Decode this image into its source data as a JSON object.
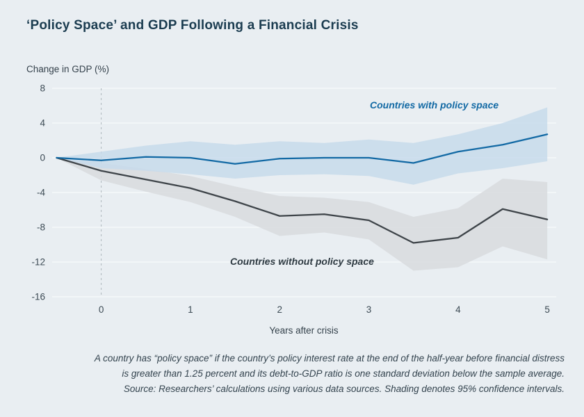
{
  "page": {
    "background": "#e9eef2"
  },
  "chart_data": {
    "type": "line",
    "title": "‘Policy Space’ and GDP Following a Financial Crisis",
    "y_axis_title": "Change in GDP (%)",
    "xlabel": "Years after crisis",
    "xlim": [
      -0.55,
      5.1
    ],
    "ylim": [
      -16,
      8
    ],
    "x_ticks": [
      0,
      1,
      2,
      3,
      4,
      5
    ],
    "y_ticks": [
      8,
      4,
      0,
      -4,
      -8,
      -12,
      -16
    ],
    "vline_x": 0,
    "grid_color": "#f6f8fa",
    "vline_color": "#aeb7bd",
    "x": [
      -0.5,
      0,
      0.5,
      1,
      1.5,
      2,
      2.5,
      3,
      3.5,
      4,
      4.5,
      5
    ],
    "series": [
      {
        "name": "Countries without policy space",
        "color": "#3e4449",
        "band_color": "#d8dbde",
        "values": [
          0,
          -1.5,
          -2.5,
          -3.5,
          -5.0,
          -6.7,
          -6.5,
          -7.2,
          -9.8,
          -9.2,
          -5.9,
          -7.1
        ],
        "band_upper": [
          0,
          -0.6,
          -1.3,
          -2.1,
          -3.3,
          -4.4,
          -4.6,
          -5.1,
          -6.8,
          -5.8,
          -2.4,
          -2.8
        ],
        "band_lower": [
          0,
          -2.6,
          -3.9,
          -5.1,
          -6.8,
          -9.0,
          -8.6,
          -9.4,
          -13.0,
          -12.6,
          -10.2,
          -11.7
        ]
      },
      {
        "name": "Countries with policy space",
        "color": "#1269a4",
        "band_color": "#c7dbeb",
        "values": [
          0,
          -0.3,
          0.1,
          0,
          -0.7,
          -0.1,
          0,
          0,
          -0.6,
          0.7,
          1.5,
          2.7
        ],
        "band_upper": [
          0,
          0.7,
          1.4,
          1.9,
          1.5,
          1.9,
          1.7,
          2.1,
          1.7,
          2.7,
          4.0,
          5.8
        ],
        "band_lower": [
          0,
          -1.2,
          -1.5,
          -1.9,
          -2.4,
          -2.0,
          -1.9,
          -2.1,
          -3.1,
          -1.8,
          -1.2,
          -0.4
        ]
      }
    ],
    "legend_position": "inline-labels",
    "grid": "horizontal-only",
    "footnote": [
      "A country has “policy space” if the country’s policy interest rate at the end of the half-year before financial distress",
      "is greater than 1.25 percent and its debt-to-GDP ratio is one standard deviation below the sample average.",
      "Source: Researchers’ calculations using various data sources. Shading denotes 95% confidence intervals."
    ]
  }
}
